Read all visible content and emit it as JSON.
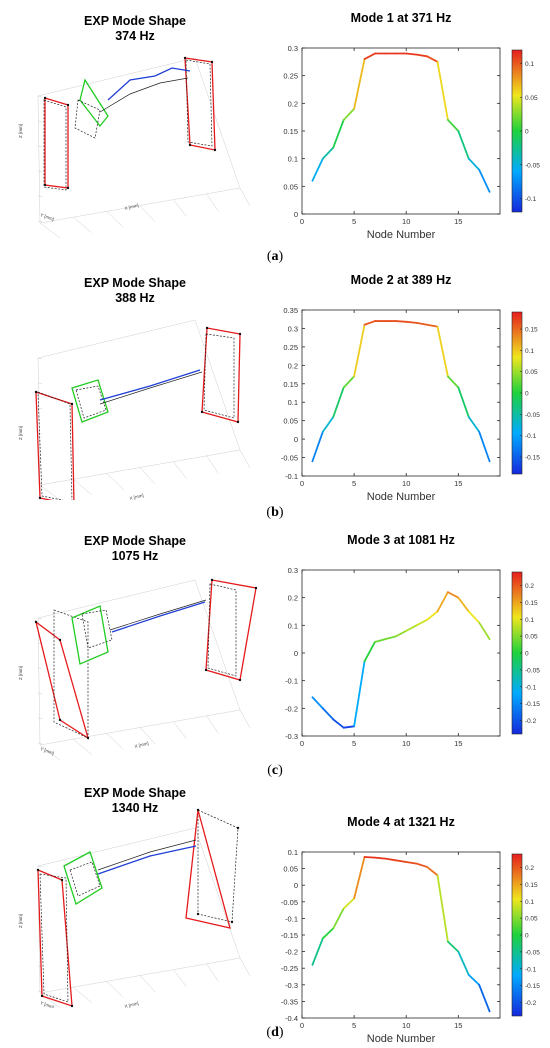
{
  "panels": [
    {
      "caption": "a",
      "exp": {
        "title": "EXP Mode Shape",
        "freq": "374 Hz",
        "zlabel": "Z [mm]",
        "xlabel": "X [mm]",
        "ylabel": "Y [mm]"
      },
      "mode": {
        "title": "Mode 1 at 371 Hz"
      }
    },
    {
      "caption": "b",
      "exp": {
        "title": "EXP Mode Shape",
        "freq": "388 Hz",
        "zlabel": "Z [mm]",
        "xlabel": "X [mm]",
        "ylabel": "Y [mm]"
      },
      "mode": {
        "title": "Mode 2 at 389 Hz"
      }
    },
    {
      "caption": "c",
      "exp": {
        "title": "EXP Mode Shape",
        "freq": "1075 Hz",
        "zlabel": "Z [mm]",
        "xlabel": "X [mm]",
        "ylabel": "Y [mm]"
      },
      "mode": {
        "title": "Mode 3 at 1081 Hz"
      }
    },
    {
      "caption": "d",
      "exp": {
        "title": "EXP Mode Shape",
        "freq": "1340 Hz",
        "zlabel": "Z [mm]",
        "xlabel": "X [mm]",
        "ylabel": "Y [mm]"
      },
      "mode": {
        "title": "Mode 4 at 1321 Hz"
      }
    }
  ],
  "colors": {
    "line_high": "#e41a1c",
    "wireframe": "#222222",
    "blue_beam": "#1f3fd6",
    "green_frame": "#22cc22"
  },
  "chart_data": [
    {
      "type": "line",
      "title": "Mode 1 at 371 Hz",
      "xlabel": "Node Number",
      "ylabel": "",
      "x": [
        1,
        2,
        3,
        4,
        5,
        6,
        7,
        8,
        9,
        10,
        11,
        12,
        13,
        14,
        15,
        16,
        17,
        18
      ],
      "values": [
        0.06,
        0.1,
        0.12,
        0.17,
        0.19,
        0.28,
        0.29,
        0.29,
        0.29,
        0.29,
        0.288,
        0.285,
        0.275,
        0.17,
        0.15,
        0.1,
        0.08,
        0.04
      ],
      "xlim": [
        0,
        19
      ],
      "ylim": [
        0,
        0.3
      ],
      "yticks": [
        "0",
        "0.05",
        "0.1",
        "0.15",
        "0.2",
        "0.25",
        "0.3"
      ],
      "xticks": [
        "0",
        "5",
        "10",
        "15"
      ],
      "colorbar": {
        "range": [
          -0.12,
          0.12
        ],
        "ticks": [
          "0.1",
          "0.05",
          "0",
          "-0.05",
          "-0.1"
        ]
      },
      "grid": false
    },
    {
      "type": "line",
      "title": "Mode 2 at 389 Hz",
      "xlabel": "Node Number",
      "ylabel": "",
      "x": [
        1,
        2,
        3,
        4,
        5,
        6,
        7,
        8,
        9,
        10,
        11,
        12,
        13,
        14,
        15,
        16,
        17,
        18
      ],
      "values": [
        -0.06,
        0.02,
        0.06,
        0.14,
        0.17,
        0.31,
        0.32,
        0.32,
        0.32,
        0.318,
        0.315,
        0.31,
        0.305,
        0.17,
        0.14,
        0.06,
        0.02,
        -0.06
      ],
      "xlim": [
        0,
        19
      ],
      "ylim": [
        -0.1,
        0.35
      ],
      "yticks": [
        "-0.1",
        "-0.05",
        "0",
        "0.05",
        "0.1",
        "0.15",
        "0.2",
        "0.25",
        "0.3",
        "0.35"
      ],
      "xticks": [
        "0",
        "5",
        "10",
        "15"
      ],
      "colorbar": {
        "range": [
          -0.19,
          0.19
        ],
        "ticks": [
          "0.15",
          "0.1",
          "0.05",
          "0",
          "-0.05",
          "-0.1",
          "-0.15"
        ]
      },
      "grid": false
    },
    {
      "type": "line",
      "title": "Mode 3 at 1081 Hz",
      "xlabel": "",
      "ylabel": "",
      "x": [
        1,
        2,
        3,
        4,
        5,
        6,
        7,
        8,
        9,
        10,
        11,
        12,
        13,
        14,
        15,
        16,
        17,
        18
      ],
      "values": [
        -0.16,
        -0.2,
        -0.24,
        -0.27,
        -0.265,
        -0.03,
        0.04,
        0.05,
        0.06,
        0.08,
        0.1,
        0.12,
        0.15,
        0.22,
        0.2,
        0.15,
        0.11,
        0.05
      ],
      "xlim": [
        0,
        19
      ],
      "ylim": [
        -0.3,
        0.3
      ],
      "yticks": [
        "-0.3",
        "-0.2",
        "-0.1",
        "0",
        "0.1",
        "0.2",
        "0.3"
      ],
      "xticks": [
        "0",
        "5",
        "10",
        "15"
      ],
      "colorbar": {
        "range": [
          -0.24,
          0.24
        ],
        "ticks": [
          "0.2",
          "0.15",
          "0.1",
          "0.05",
          "0",
          "-0.05",
          "-0.1",
          "-0.15",
          "-0.2"
        ]
      },
      "grid": false
    },
    {
      "type": "line",
      "title": "Mode 4 at 1321 Hz",
      "xlabel": "Node Number",
      "ylabel": "",
      "x": [
        1,
        2,
        3,
        4,
        5,
        6,
        7,
        8,
        9,
        10,
        11,
        12,
        13,
        14,
        15,
        16,
        17,
        18
      ],
      "values": [
        -0.24,
        -0.16,
        -0.13,
        -0.07,
        -0.04,
        0.085,
        0.083,
        0.08,
        0.075,
        0.07,
        0.065,
        0.055,
        0.03,
        -0.17,
        -0.2,
        -0.27,
        -0.3,
        -0.38
      ],
      "xlim": [
        0,
        19
      ],
      "ylim": [
        -0.4,
        0.1
      ],
      "yticks": [
        "-0.4",
        "-0.35",
        "-0.3",
        "-0.25",
        "-0.2",
        "-0.15",
        "-0.1",
        "-0.05",
        "0",
        "0.05",
        "0.1"
      ],
      "xticks": [
        "0",
        "5",
        "10",
        "15"
      ],
      "colorbar": {
        "range": [
          -0.24,
          0.24
        ],
        "ticks": [
          "0.2",
          "0.15",
          "0.1",
          "0.05",
          "0",
          "-0.05",
          "-0.1",
          "-0.15",
          "-0.2"
        ]
      },
      "grid": false
    }
  ]
}
